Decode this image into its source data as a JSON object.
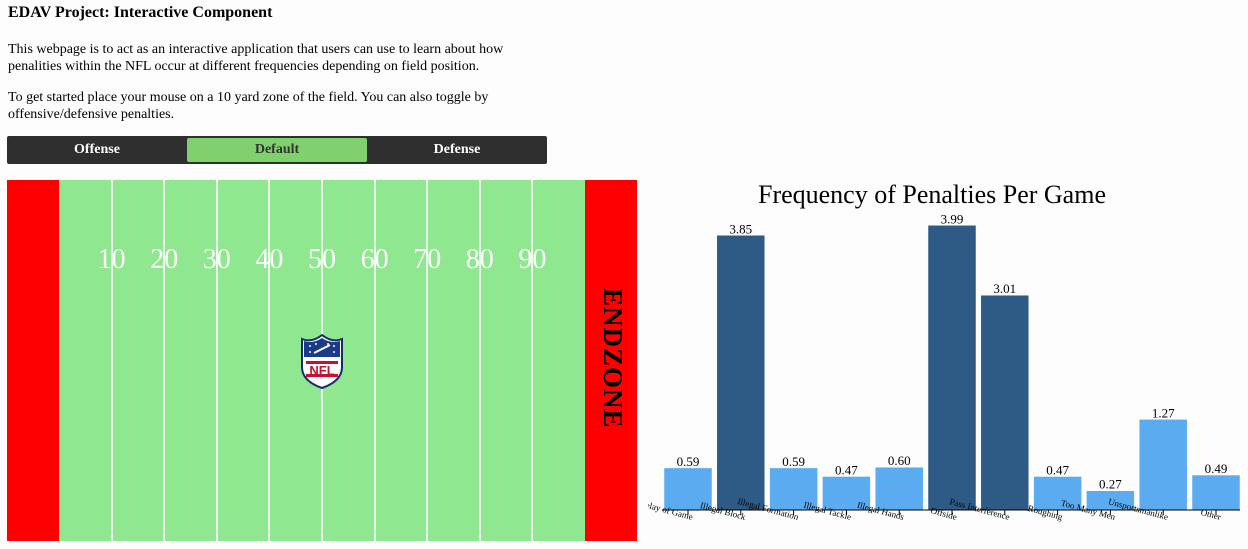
{
  "header": {
    "title": "EDAV Project: Interactive Component",
    "intro": "This webpage is to act as an interactive application that users can use to learn about how penalities within the NFL occur at different frequencies depending on field position.",
    "instructions": "To get started place your mouse on a 10 yard zone of the field. You can also toggle by offensive/defensive penalties."
  },
  "toggle": {
    "options": [
      {
        "label": "Offense",
        "active": false
      },
      {
        "label": "Default",
        "active": true
      },
      {
        "label": "Defense",
        "active": false
      }
    ]
  },
  "field": {
    "yard_numbers": [
      "10",
      "20",
      "30",
      "40",
      "50",
      "60",
      "70",
      "80",
      "90"
    ],
    "endzone_label": "ENDZONE",
    "colors": {
      "turf": "#8fe88f",
      "endzone": "#ff0000",
      "lines": "#ffffff"
    },
    "logo_icon": "nfl-shield-icon"
  },
  "chart_data": {
    "type": "bar",
    "title": "Frequency of Penalties Per Game",
    "categories": [
      "Delay of Game",
      "Illegal Block",
      "Illegal Formation",
      "Illegal Tackle",
      "Illegal Hands",
      "Offside",
      "Pass Interference",
      "Roughing",
      "Too Many Men",
      "Unsportsmanlike",
      "Other"
    ],
    "values": [
      0.59,
      3.85,
      0.59,
      0.47,
      0.6,
      3.99,
      3.01,
      0.47,
      0.27,
      1.27,
      0.49
    ],
    "labels": [
      "0.59",
      "3.85",
      "0.59",
      "0.47",
      "0.60",
      "3.99",
      "3.01",
      "0.47",
      "0.27",
      "1.27",
      "0.49"
    ],
    "ylim": [
      0,
      4.4
    ],
    "xlabel": "",
    "ylabel": "",
    "colors": {
      "low": "#5aabf0",
      "high": "#2e5a86"
    }
  }
}
